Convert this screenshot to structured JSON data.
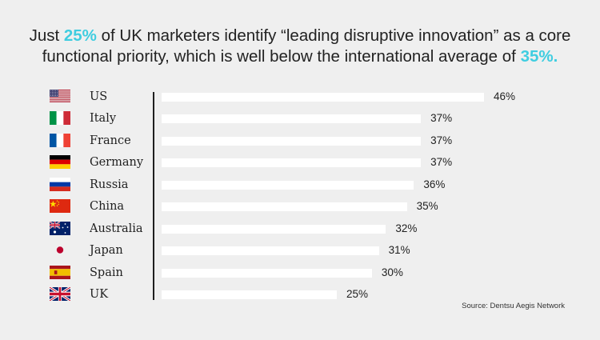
{
  "headline": {
    "p1": "Just ",
    "h1": "25%",
    "p2": " of UK marketers identify “leading disruptive innovation” as a core functional priority, which is well below the international average of ",
    "h2": "35%",
    "p3": "."
  },
  "source": "Source: Dentsu Aegis Network",
  "colors": {
    "highlight": "#3fcde0",
    "bar": "#ffffff",
    "background": "#efefef"
  },
  "chart_data": {
    "type": "bar",
    "orientation": "horizontal",
    "title": "",
    "categories": [
      "US",
      "Italy",
      "France",
      "Germany",
      "Russia",
      "China",
      "Australia",
      "Japan",
      "Spain",
      "UK"
    ],
    "values": [
      46,
      37,
      37,
      37,
      36,
      35,
      32,
      31,
      30,
      25
    ],
    "value_labels": [
      "46%",
      "37%",
      "37%",
      "37%",
      "36%",
      "35%",
      "32%",
      "31%",
      "30%",
      "25%"
    ],
    "flags": [
      "us-flag-icon",
      "italy-flag-icon",
      "france-flag-icon",
      "germany-flag-icon",
      "russia-flag-icon",
      "china-flag-icon",
      "australia-flag-icon",
      "japan-flag-icon",
      "spain-flag-icon",
      "uk-flag-icon"
    ],
    "xlabel": "",
    "ylabel": "",
    "xlim": [
      0,
      46
    ],
    "grid": false,
    "legend": "none"
  }
}
